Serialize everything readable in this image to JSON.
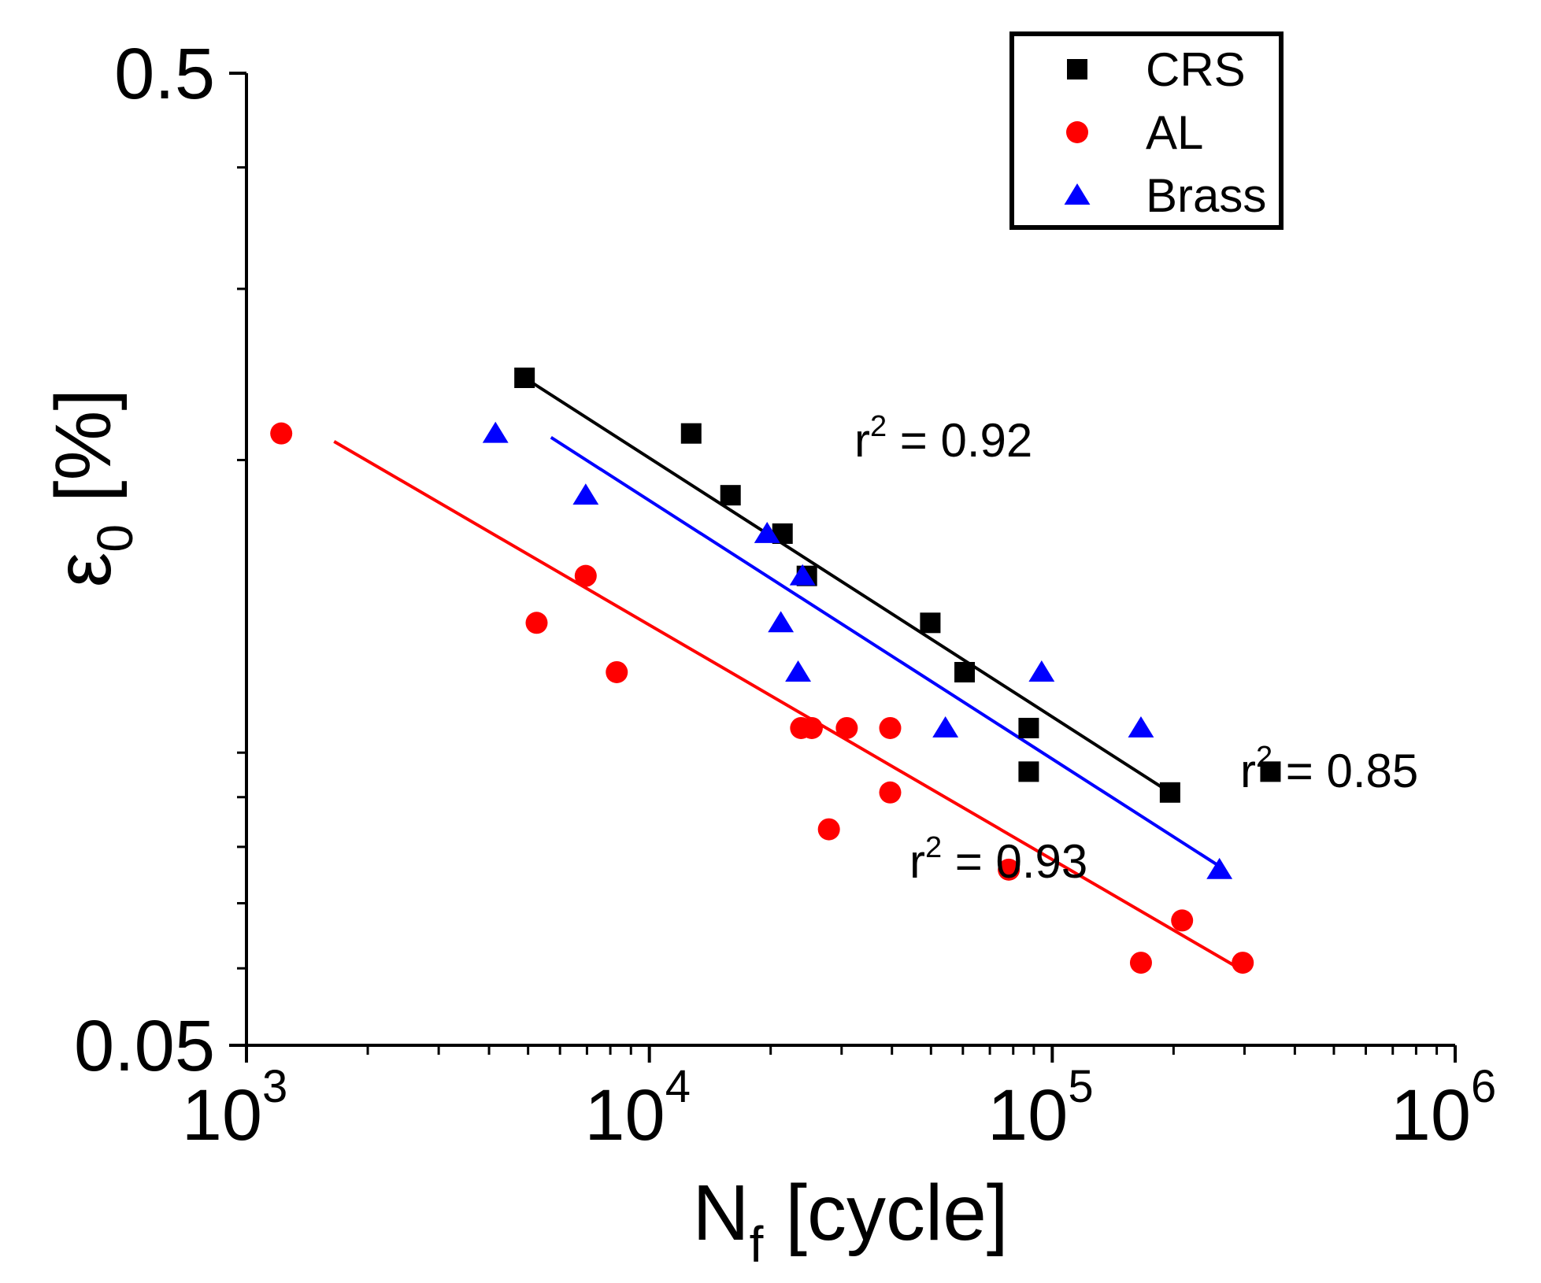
{
  "chart_data": {
    "type": "scatter",
    "x_scale": "log",
    "y_scale": "log",
    "xlim": [
      1000,
      1000000
    ],
    "ylim": [
      0.05,
      0.5
    ],
    "xlabel": {
      "main": "N",
      "sub": "f",
      "rest": " [cycle]"
    },
    "ylabel": {
      "main": "ε",
      "sub": "0",
      "rest": " [%]"
    },
    "x_ticks": [
      {
        "base": "10",
        "exp": "3",
        "value": 1000
      },
      {
        "base": "10",
        "exp": "4",
        "value": 10000
      },
      {
        "base": "10",
        "exp": "5",
        "value": 100000
      },
      {
        "base": "10",
        "exp": "6",
        "value": 1000000
      }
    ],
    "y_ticks": [
      {
        "label": "0.05",
        "value": 0.05
      },
      {
        "label": "0.5",
        "value": 0.5
      }
    ],
    "grid": false,
    "legend": {
      "position": "top-right",
      "boxed": true
    },
    "series": [
      {
        "name": "CRS",
        "marker": "square",
        "color": "#000000",
        "points": [
          [
            4900,
            0.243
          ],
          [
            12700,
            0.213
          ],
          [
            15900,
            0.184
          ],
          [
            21400,
            0.168
          ],
          [
            24600,
            0.152
          ],
          [
            49800,
            0.136
          ],
          [
            60600,
            0.121
          ],
          [
            87400,
            0.106
          ],
          [
            87400,
            0.0956
          ],
          [
            196000,
            0.091
          ],
          [
            348000,
            0.0956
          ]
        ],
        "fit": {
          "from": [
            4900,
            0.243
          ],
          "to": [
            196000,
            0.091
          ],
          "r2_label": "r",
          "r2_exp": "2",
          "r2_value": " = 0.92"
        }
      },
      {
        "name": "AL",
        "marker": "circle",
        "color": "#ff0000",
        "points": [
          [
            1220,
            0.213
          ],
          [
            5250,
            0.136
          ],
          [
            6950,
            0.152
          ],
          [
            8300,
            0.121
          ],
          [
            23800,
            0.106
          ],
          [
            25300,
            0.106
          ],
          [
            30900,
            0.106
          ],
          [
            39600,
            0.106
          ],
          [
            39600,
            0.091
          ],
          [
            27900,
            0.0834
          ],
          [
            78000,
            0.0758
          ],
          [
            166000,
            0.0608
          ],
          [
            210000,
            0.0672
          ],
          [
            297000,
            0.0608
          ]
        ],
        "fit": {
          "from": [
            1650,
            0.209
          ],
          "to": [
            283000,
            0.0604
          ],
          "r2_label": "r",
          "r2_exp": "2",
          "r2_value": " = 0.93"
        }
      },
      {
        "name": "Brass",
        "marker": "triangle",
        "color": "#0000ff",
        "points": [
          [
            4150,
            0.213
          ],
          [
            6950,
            0.184
          ],
          [
            19600,
            0.168
          ],
          [
            24000,
            0.152
          ],
          [
            21200,
            0.136
          ],
          [
            23400,
            0.121
          ],
          [
            54300,
            0.106
          ],
          [
            94100,
            0.121
          ],
          [
            166000,
            0.106
          ],
          [
            260000,
            0.0758
          ]
        ],
        "fit": {
          "from": [
            5700,
            0.211
          ],
          "to": [
            268000,
            0.0758
          ],
          "r2_label": "r",
          "r2_exp": "2",
          "r2_value": " = 0.85"
        }
      }
    ]
  }
}
